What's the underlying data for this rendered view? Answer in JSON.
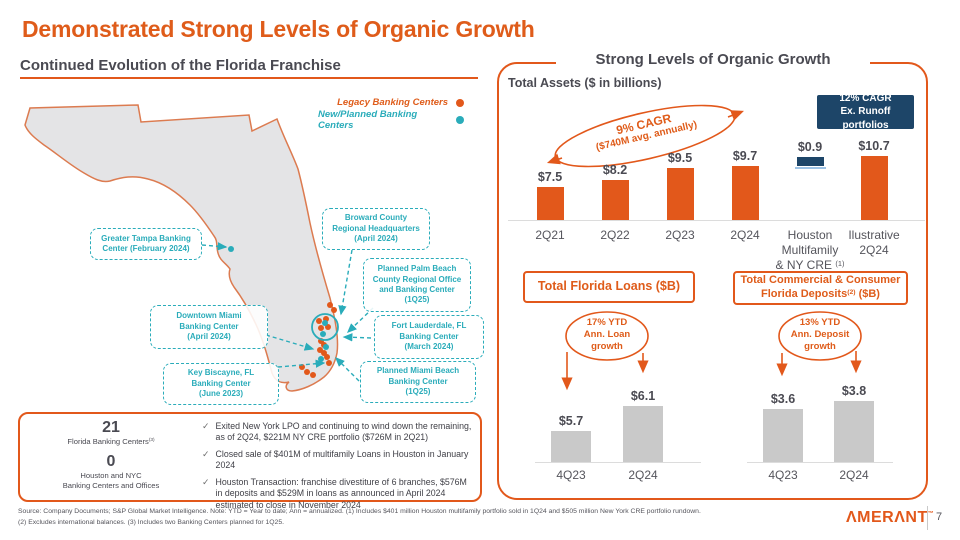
{
  "slide": {
    "title": "Demonstrated Strong Levels of Organic Growth",
    "page_number": "7",
    "logo_text": "ΛMERΛNT",
    "logo_tm": "™",
    "footer_line1": "Source: Company Documents; S&P Global Market Intelligence. Note: YTD = Year to date; Ann = annualized. (1) Includes $401 million Houston multifamily portfolio sold in 1Q24 and $505 million New York CRE portfolio rundown.",
    "footer_line2": "(2) Excludes international balances. (3) Includes two Banking Centers planned for 1Q25."
  },
  "colors": {
    "orange": "#E2581B",
    "teal": "#2AACBA",
    "navy": "#1D4568",
    "gray_bar": "#C9C9C9"
  },
  "left_panel": {
    "subtitle": "Continued Evolution of the Florida Franchise",
    "legend": [
      {
        "label": "Legacy Banking Centers",
        "color": "#E2581B"
      },
      {
        "label": "New/Planned Banking Centers",
        "color": "#2AACBA"
      }
    ],
    "callouts": [
      {
        "id": "tampa",
        "text": "Greater Tampa Banking\nCenter (February 2024)"
      },
      {
        "id": "broward",
        "text": "Broward County\nRegional Headquarters\n(April 2024)"
      },
      {
        "id": "palmbeach",
        "text": "Planned Palm Beach\nCounty Regional Office\nand Banking Center\n(1Q25)"
      },
      {
        "id": "downtown",
        "text": "Downtown Miami\nBanking Center\n(April 2024)"
      },
      {
        "id": "ftlaud",
        "text": "Fort Lauderdale, FL\nBanking Center\n(March 2024)"
      },
      {
        "id": "keybisc",
        "text": "Key Biscayne, FL\nBanking Center\n(June 2023)"
      },
      {
        "id": "miamibeach",
        "text": "Planned Miami Beach\nBanking Center\n(1Q25)"
      }
    ],
    "stats": [
      {
        "value": "21",
        "label": "Florida Banking Centers",
        "sup": "(3)"
      },
      {
        "value": "0",
        "label_line1": "Houston and NYC",
        "label_line2": "Banking Centers and Offices"
      }
    ],
    "bullets": [
      "Exited New York LPO and continuing to wind down the remaining, as of 2Q24,  $221M NY CRE portfolio ($726M in 2Q21)",
      "Closed sale of $401M of multifamily Loans in Houston in January 2024",
      "Houston Transaction: franchise divestiture of 6 branches, $576M in deposits and $529M in loans as announced in April 2024 estimated to close in November 2024"
    ]
  },
  "right_panel": {
    "title": "Strong Levels of Organic Growth"
  },
  "chart_data": [
    {
      "type": "bar",
      "title": "Total Assets ($ in billions)",
      "categories": [
        "2Q21",
        "2Q22",
        "2Q23",
        "2Q24",
        "Houston\nMultifamily\n& NY CRE (1)",
        "Ilustrative\n2Q24"
      ],
      "values": [
        7.5,
        8.2,
        9.5,
        9.7,
        0.9,
        10.7
      ],
      "labels": [
        "$7.5",
        "$8.2",
        "$9.5",
        "$9.7",
        "$0.9",
        "$10.7"
      ],
      "bar_color_keys": [
        "orange",
        "orange",
        "orange",
        "orange",
        "navy",
        "orange"
      ],
      "float_note": "Houston Multifamily & NY CRE shown as floating segment from 9.7 to 10.6",
      "annotation_line1": "9% CAGR",
      "annotation_line2": "($740M avg. annually)",
      "callout_line1": "12% CAGR",
      "callout_line2": "Ex. Runoff portfolios",
      "ylim": [
        4,
        11.2
      ],
      "grid": false,
      "legend_position": "none"
    },
    {
      "type": "bar",
      "title": "Total Florida Loans ($B)",
      "categories": [
        "4Q23",
        "2Q24"
      ],
      "values": [
        5.7,
        6.1
      ],
      "labels": [
        "$5.7",
        "$6.1"
      ],
      "annotation_line1": "17% YTD",
      "annotation_line2": "Ann. Loan",
      "annotation_line3": "growth",
      "ylim": [
        5.2,
        6.3
      ],
      "grid": false
    },
    {
      "type": "bar",
      "title_line1": "Total Commercial & Consumer",
      "title_line2_pre": "Florida Deposits",
      "title_line2_sup": "(2)",
      "title_line2_post": " ($B)",
      "categories": [
        "4Q23",
        "2Q24"
      ],
      "values": [
        3.6,
        3.8
      ],
      "labels": [
        "$3.6",
        "$3.8"
      ],
      "annotation_line1": "13% YTD",
      "annotation_line2": "Ann. Deposit",
      "annotation_line3": "growth",
      "ylim": [
        2.3,
        3.95
      ],
      "grid": false
    }
  ]
}
